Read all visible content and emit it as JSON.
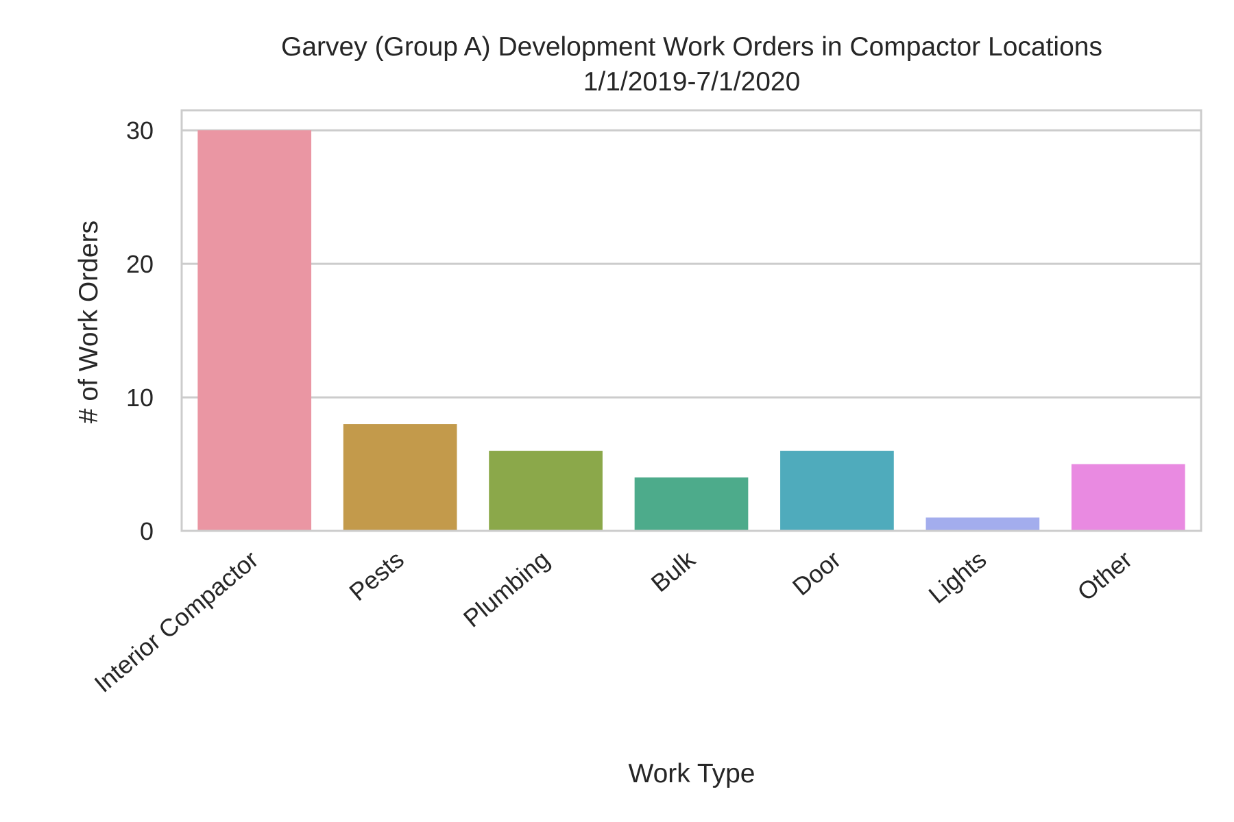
{
  "chart_data": {
    "type": "bar",
    "title": "Garvey (Group A) Development Work Orders in Compactor Locations",
    "subtitle": "1/1/2019-7/1/2020",
    "xlabel": "Work Type",
    "ylabel": "# of Work Orders",
    "categories": [
      "Interior Compactor",
      "Pests",
      "Plumbing",
      "Bulk",
      "Door",
      "Lights",
      "Other"
    ],
    "values": [
      30,
      8,
      6,
      4,
      6,
      1,
      5
    ],
    "colors": [
      "#ea96a3",
      "#c39a4b",
      "#8ba84a",
      "#4dab8b",
      "#4fabbc",
      "#a3aded",
      "#e98ae1"
    ],
    "ylim": [
      0,
      31.5
    ],
    "yticks": [
      0,
      10,
      20,
      30
    ],
    "grid": "y",
    "colors_style": {
      "grid": "#cccccc",
      "spine": "#cccccc",
      "text": "#262626"
    }
  }
}
